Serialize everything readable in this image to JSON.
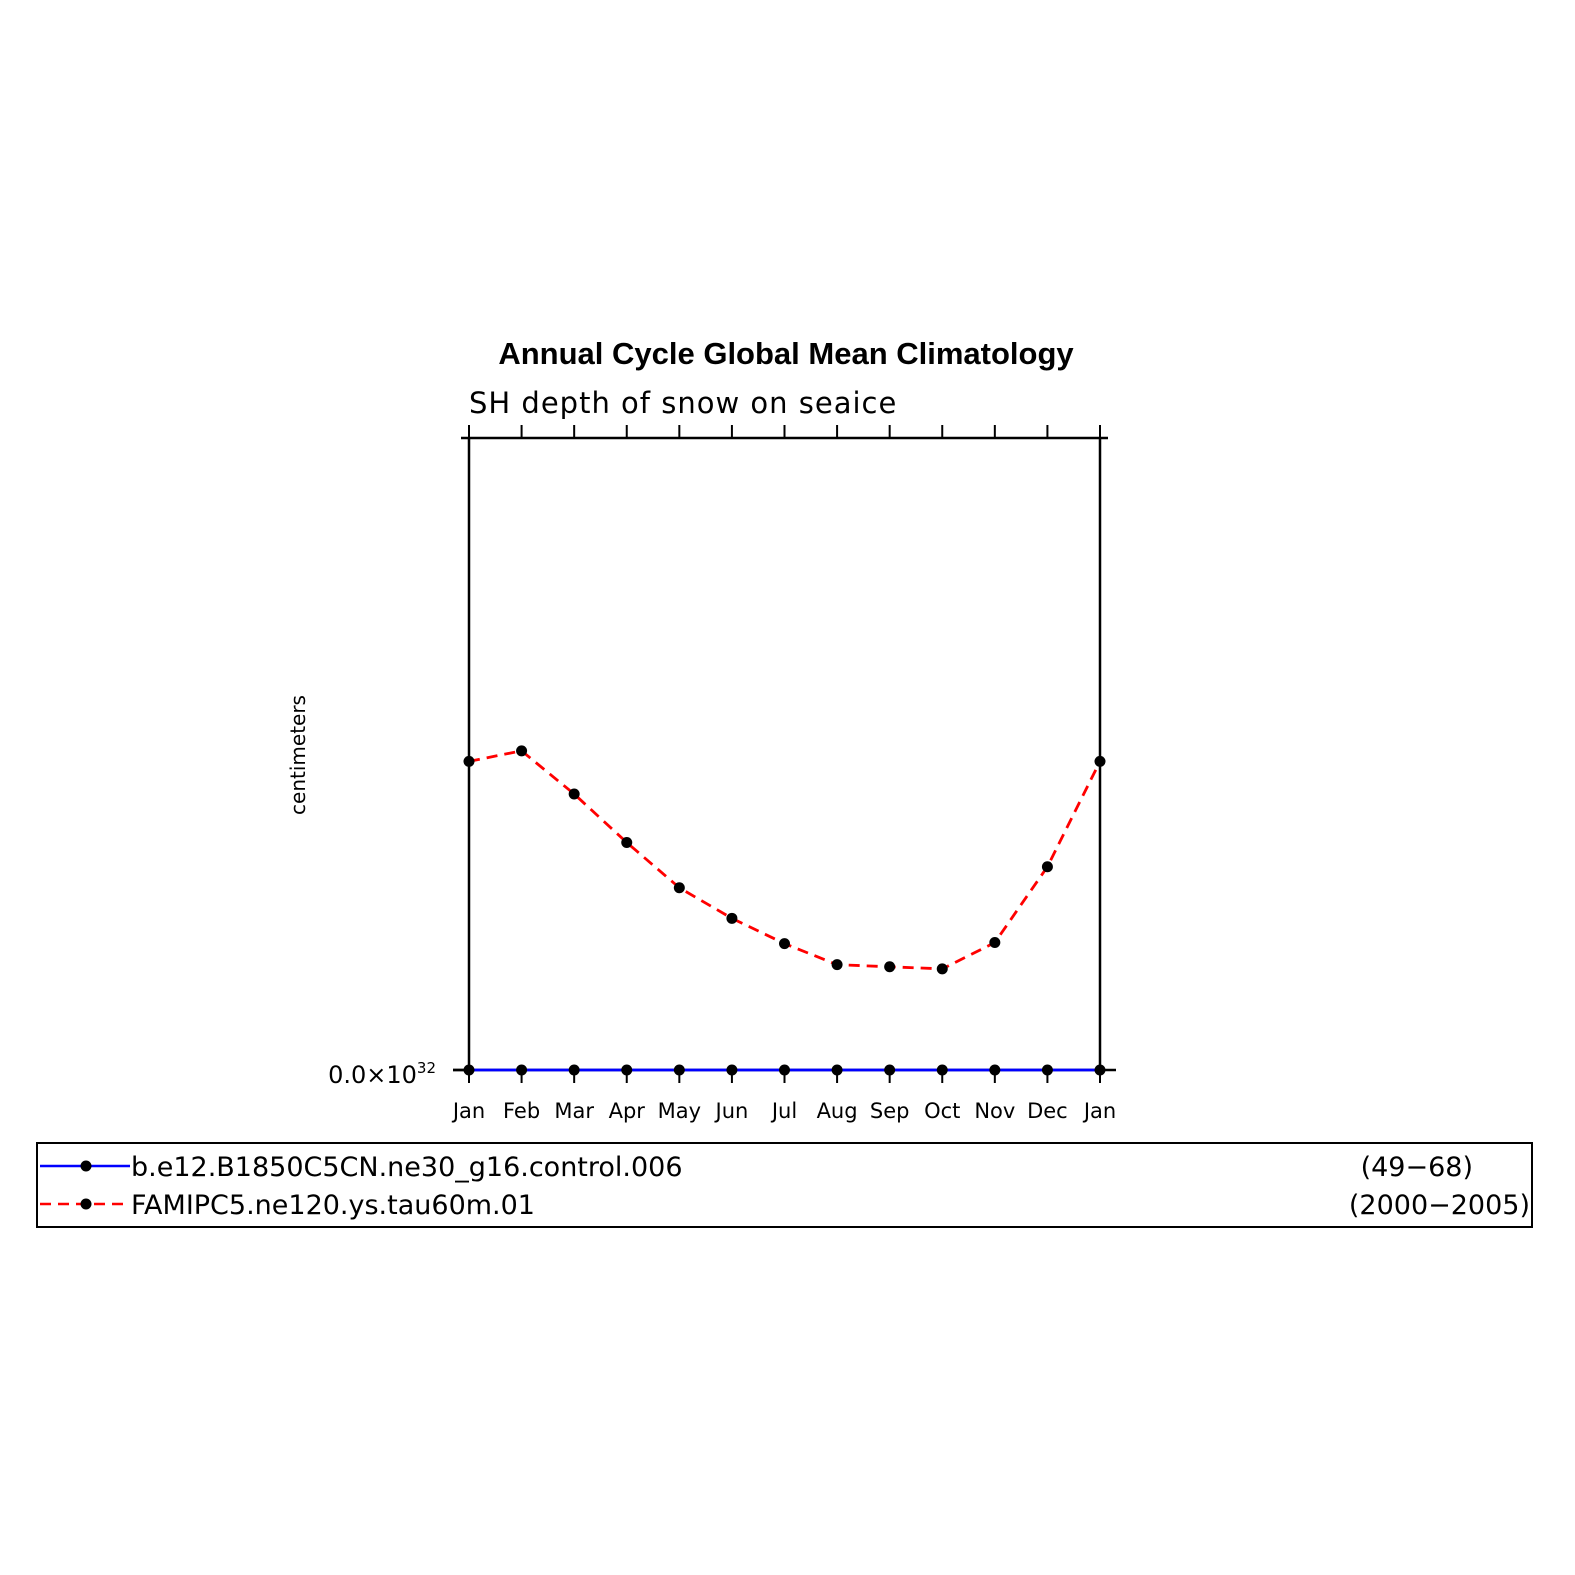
{
  "chart_data": {
    "type": "line",
    "title": "Annual Cycle Global Mean Climatology",
    "subtitle": "SH depth of snow on seaice",
    "xlabel": "",
    "ylabel": "centimeters",
    "categories": [
      "Jan",
      "Feb",
      "Mar",
      "Apr",
      "May",
      "Jun",
      "Jul",
      "Aug",
      "Sep",
      "Oct",
      "Nov",
      "Dec",
      "Jan"
    ],
    "y_tick_label": "0.0×10",
    "y_tick_exponent": "32",
    "ylim": [
      0,
      60
    ],
    "series": [
      {
        "name": "b.e12.B1850C5CN.ne30_g16.control.006",
        "period": "(49−68)",
        "color": "#0000ff",
        "line_style": "solid",
        "marker": "circle",
        "values": [
          0,
          0,
          0,
          0,
          0,
          0,
          0,
          0,
          0,
          0,
          0,
          0,
          0
        ]
      },
      {
        "name": "FAMIPC5.ne120.ys.tau60m.01",
        "period": "(2000−2005)",
        "color": "#ff0000",
        "line_style": "dashed",
        "marker": "circle",
        "values": [
          29.3,
          30.3,
          26.2,
          21.6,
          17.3,
          14.4,
          12.0,
          10.0,
          9.8,
          9.6,
          12.1,
          19.3,
          29.3
        ]
      }
    ],
    "grid": false,
    "legend_position": "bottom"
  }
}
